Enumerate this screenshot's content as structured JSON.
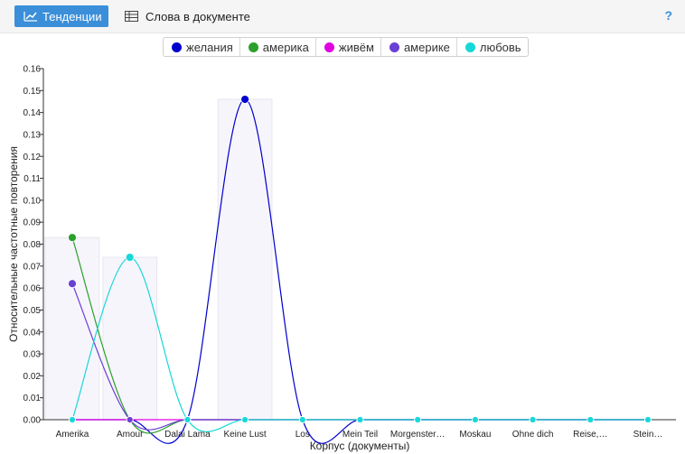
{
  "toolbar": {
    "tab_trends": "Тенденции",
    "tab_words": "Слова в документе",
    "help": "?"
  },
  "legend": [
    {
      "label": "желания",
      "color": "#0000cc"
    },
    {
      "label": "америка",
      "color": "#2ca02c"
    },
    {
      "label": "живём",
      "color": "#e000e0"
    },
    {
      "label": "америке",
      "color": "#6a3fd4"
    },
    {
      "label": "любовь",
      "color": "#17d8d8"
    }
  ],
  "chart_data": {
    "type": "line",
    "xlabel": "Корпус (документы)",
    "ylabel": "Относительные частотные повторения",
    "ylim": [
      0,
      0.16
    ],
    "yticks": [
      "0.00",
      "0.01",
      "0.02",
      "0.03",
      "0.04",
      "0.05",
      "0.06",
      "0.07",
      "0.08",
      "0.09",
      "0.10",
      "0.11",
      "0.12",
      "0.13",
      "0.14",
      "0.15",
      "0.16"
    ],
    "categories": [
      "Amerika",
      "Amour",
      "Dalai Lama",
      "Keine Lust",
      "Los",
      "Mein Teil",
      "Morgenster…",
      "Moskau",
      "Ohne dich",
      "Reise,…",
      "Stein…"
    ],
    "series": [
      {
        "name": "желания",
        "color": "#0000cc",
        "values": [
          0,
          0,
          0,
          0.146,
          0,
          0,
          0,
          0,
          0,
          0,
          0
        ]
      },
      {
        "name": "америка",
        "color": "#2ca02c",
        "values": [
          0.083,
          0,
          0,
          0,
          0,
          0,
          0,
          0,
          0,
          0,
          0
        ]
      },
      {
        "name": "живём",
        "color": "#e000e0",
        "values": [
          0,
          0,
          0,
          0,
          0,
          0,
          0,
          0,
          0,
          0,
          0
        ]
      },
      {
        "name": "америке",
        "color": "#6a3fd4",
        "values": [
          0.062,
          0,
          0,
          0,
          0,
          0,
          0,
          0,
          0,
          0,
          0
        ]
      },
      {
        "name": "любовь",
        "color": "#17d8d8",
        "values": [
          0,
          0.074,
          0,
          0,
          0,
          0,
          0,
          0,
          0,
          0,
          0
        ]
      }
    ]
  }
}
